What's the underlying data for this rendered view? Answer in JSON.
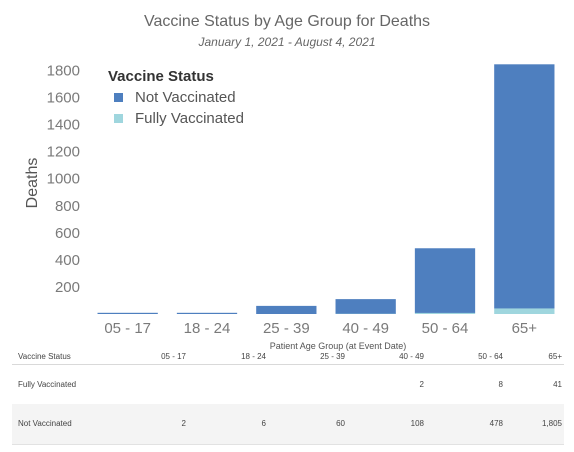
{
  "chart_data": {
    "type": "bar",
    "stacked": true,
    "title": "Vaccine Status by Age Group for Deaths",
    "subtitle": "January 1, 2021 - August 4, 2021",
    "xlabel": "Patient Age Group (at Event Date)",
    "ylabel": "Deaths",
    "categories": [
      "05 - 17",
      "18 - 24",
      "25 - 39",
      "40 - 49",
      "50 - 64",
      "65+"
    ],
    "yticks": [
      200,
      400,
      600,
      800,
      1000,
      1200,
      1400,
      1600,
      1800
    ],
    "ylim": [
      0,
      1900
    ],
    "grid": false,
    "legend": {
      "title": "Vaccine Status",
      "placement": "top-left"
    },
    "series": [
      {
        "name": "Fully Vaccinated",
        "color": "#9fd6de",
        "values": [
          0,
          0,
          0,
          2,
          8,
          41
        ]
      },
      {
        "name": "Not Vaccinated",
        "color": "#4e7fbf",
        "values": [
          2,
          6,
          60,
          108,
          478,
          1805
        ]
      }
    ]
  },
  "table": {
    "corner": "Vaccine Status",
    "columns": [
      "05 - 17",
      "18 - 24",
      "25 - 39",
      "40 - 49",
      "50 - 64",
      "65+"
    ],
    "rows": [
      {
        "label": "Fully Vaccinated",
        "cells": [
          "",
          "",
          "",
          "2",
          "8",
          "41"
        ]
      },
      {
        "label": "Not Vaccinated",
        "cells": [
          "2",
          "6",
          "60",
          "108",
          "478",
          "1,805"
        ]
      }
    ]
  },
  "legend_items": [
    {
      "label": "Not Vaccinated",
      "color": "#4e7fbf"
    },
    {
      "label": "Fully Vaccinated",
      "color": "#9fd6de"
    }
  ]
}
